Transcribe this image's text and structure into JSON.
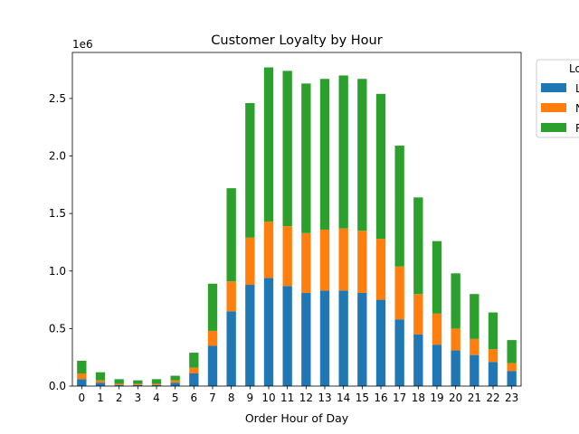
{
  "chart_data": {
    "type": "bar",
    "stacked": true,
    "title": "Customer Loyalty by Hour",
    "xlabel": "Order Hour of Day",
    "ylabel": "",
    "y_offset_label": "1e6",
    "ylim": [
      0,
      2.9
    ],
    "y_ticks": [
      0.0,
      0.5,
      1.0,
      1.5,
      2.0,
      2.5
    ],
    "y_tick_labels": [
      "0.0",
      "0.5",
      "1.0",
      "1.5",
      "2.0",
      "2.5"
    ],
    "categories": [
      "0",
      "1",
      "2",
      "3",
      "4",
      "5",
      "6",
      "7",
      "8",
      "9",
      "10",
      "11",
      "12",
      "13",
      "14",
      "15",
      "16",
      "17",
      "18",
      "19",
      "20",
      "21",
      "22",
      "23"
    ],
    "legend": {
      "title": "Lo",
      "placement": "outside-upper-right",
      "entries": [
        "L",
        "N",
        "R"
      ]
    },
    "series": [
      {
        "name": "L",
        "color": "#1f77b4",
        "values": [
          0.06,
          0.03,
          0.01,
          0.01,
          0.01,
          0.03,
          0.11,
          0.35,
          0.65,
          0.88,
          0.94,
          0.87,
          0.81,
          0.83,
          0.83,
          0.81,
          0.75,
          0.58,
          0.45,
          0.36,
          0.31,
          0.27,
          0.21,
          0.13
        ]
      },
      {
        "name": "N",
        "color": "#ff7f0e",
        "values": [
          0.05,
          0.02,
          0.01,
          0.01,
          0.01,
          0.02,
          0.05,
          0.13,
          0.26,
          0.41,
          0.49,
          0.52,
          0.52,
          0.53,
          0.54,
          0.54,
          0.53,
          0.46,
          0.35,
          0.27,
          0.19,
          0.14,
          0.11,
          0.07
        ]
      },
      {
        "name": "R",
        "color": "#2ca02c",
        "values": [
          0.11,
          0.07,
          0.04,
          0.03,
          0.04,
          0.04,
          0.13,
          0.41,
          0.81,
          1.17,
          1.34,
          1.35,
          1.3,
          1.31,
          1.33,
          1.32,
          1.26,
          1.05,
          0.84,
          0.63,
          0.48,
          0.39,
          0.32,
          0.2
        ]
      }
    ],
    "grid": false
  }
}
